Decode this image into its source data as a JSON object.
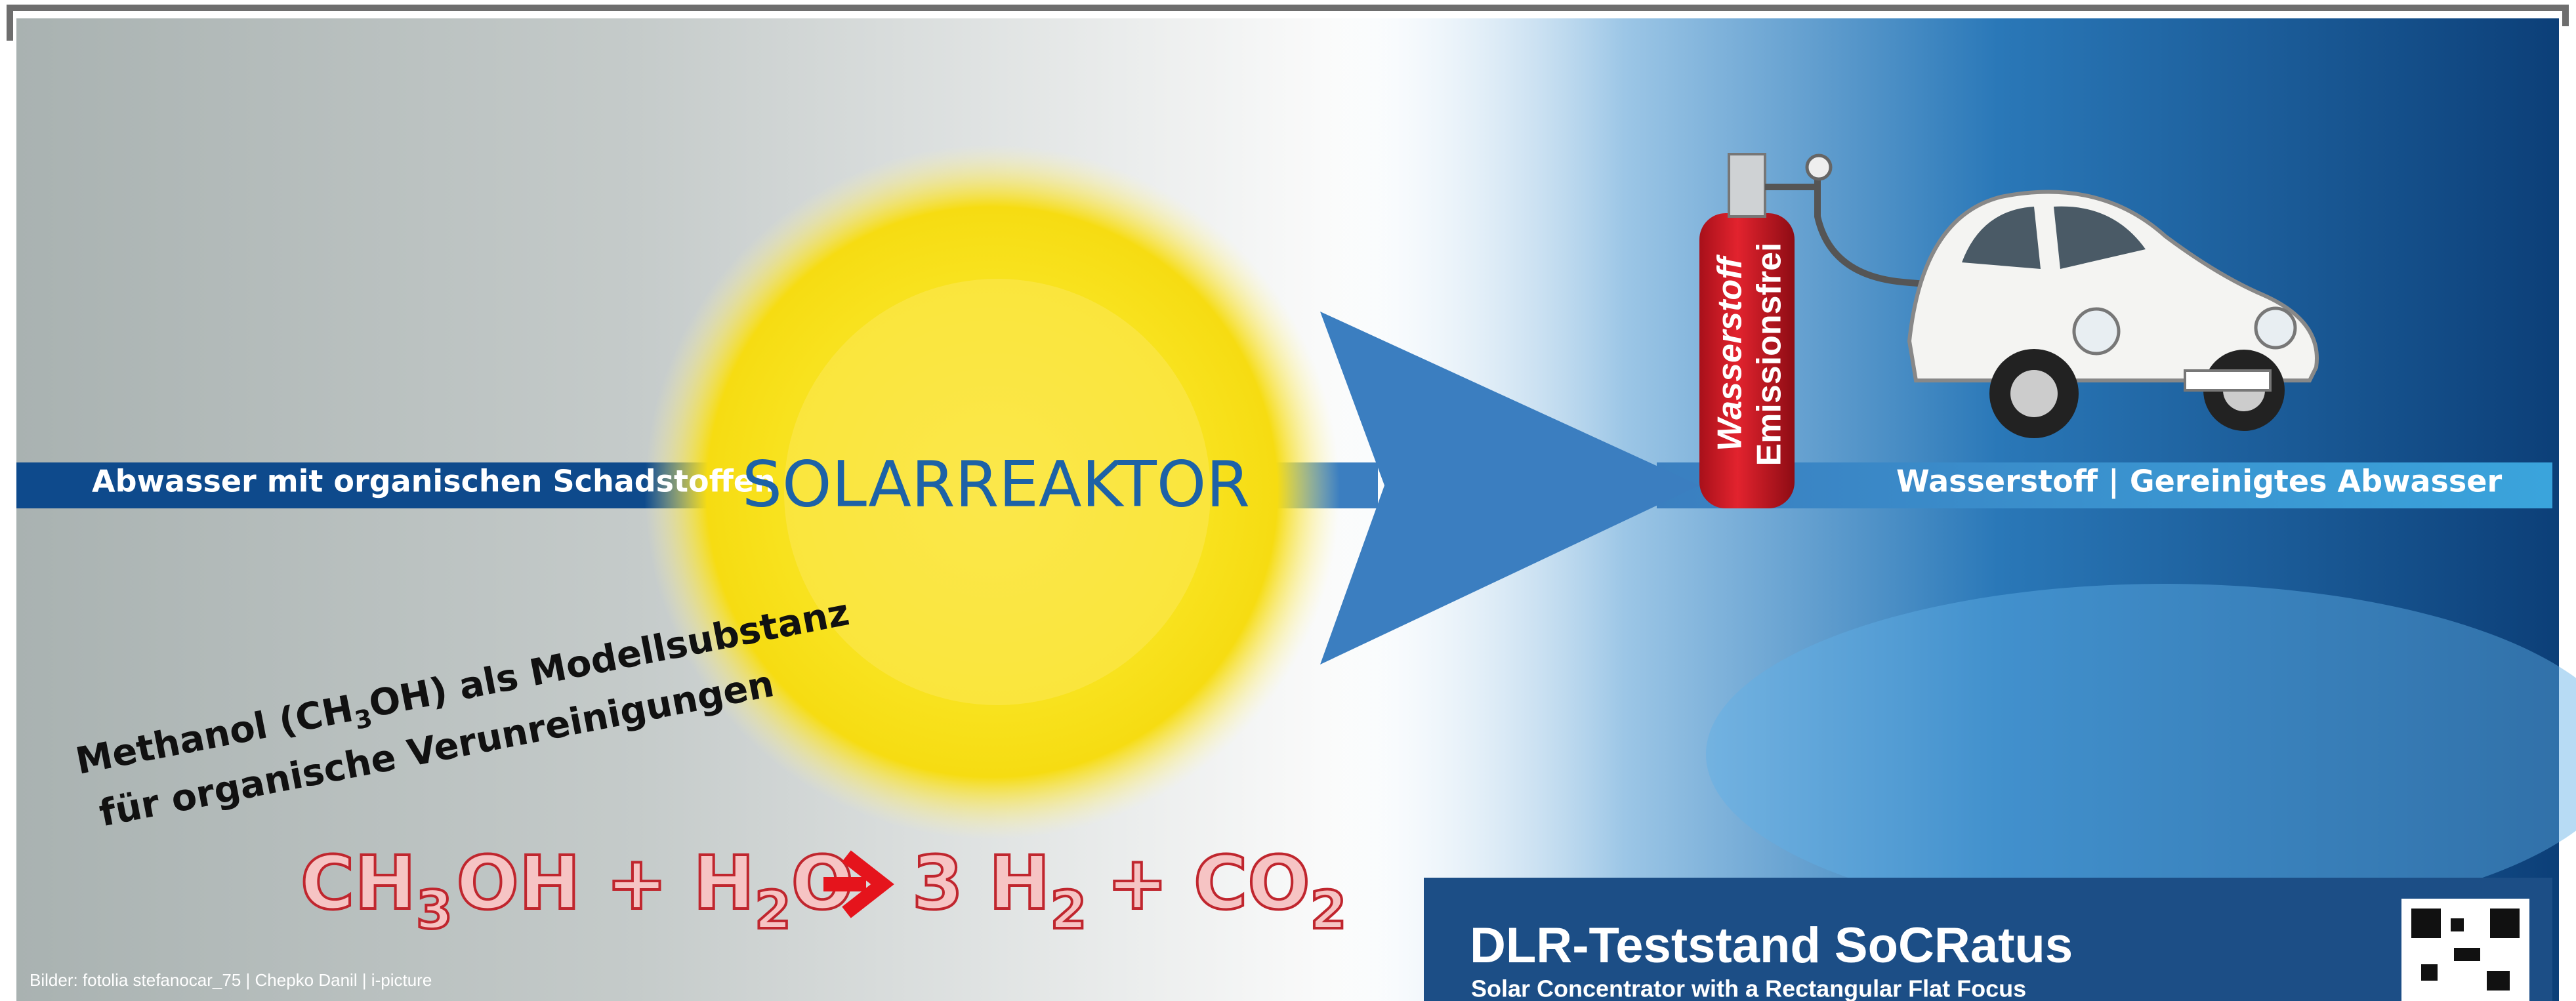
{
  "banner": {
    "input_label": "Abwasser mit organischen Schadstoffen",
    "center_label": "SOLARREAKTOR",
    "output_label": "Wasserstoff | Gereinigtes Abwasser"
  },
  "cylinder": {
    "label_1": "Wasserstoff",
    "label_2": "Emissionsfrei"
  },
  "model_note": {
    "line_1": [
      "Methanol (CH",
      "3",
      "OH) als Modellsubstanz"
    ],
    "line_2": "für organische Verunreinigungen"
  },
  "equation": [
    "CH",
    "3",
    "OH + H",
    "2",
    "O",
    "3 H",
    "2",
    "+ CO",
    "2"
  ],
  "footer": {
    "title": "DLR-Teststand SoCRatus",
    "subtitle": "Solar Concentrator with a Rectangular Flat Focus",
    "credits": "Bilder: fotolia stefanocar_75 | Chepko Danil | i-picture"
  }
}
